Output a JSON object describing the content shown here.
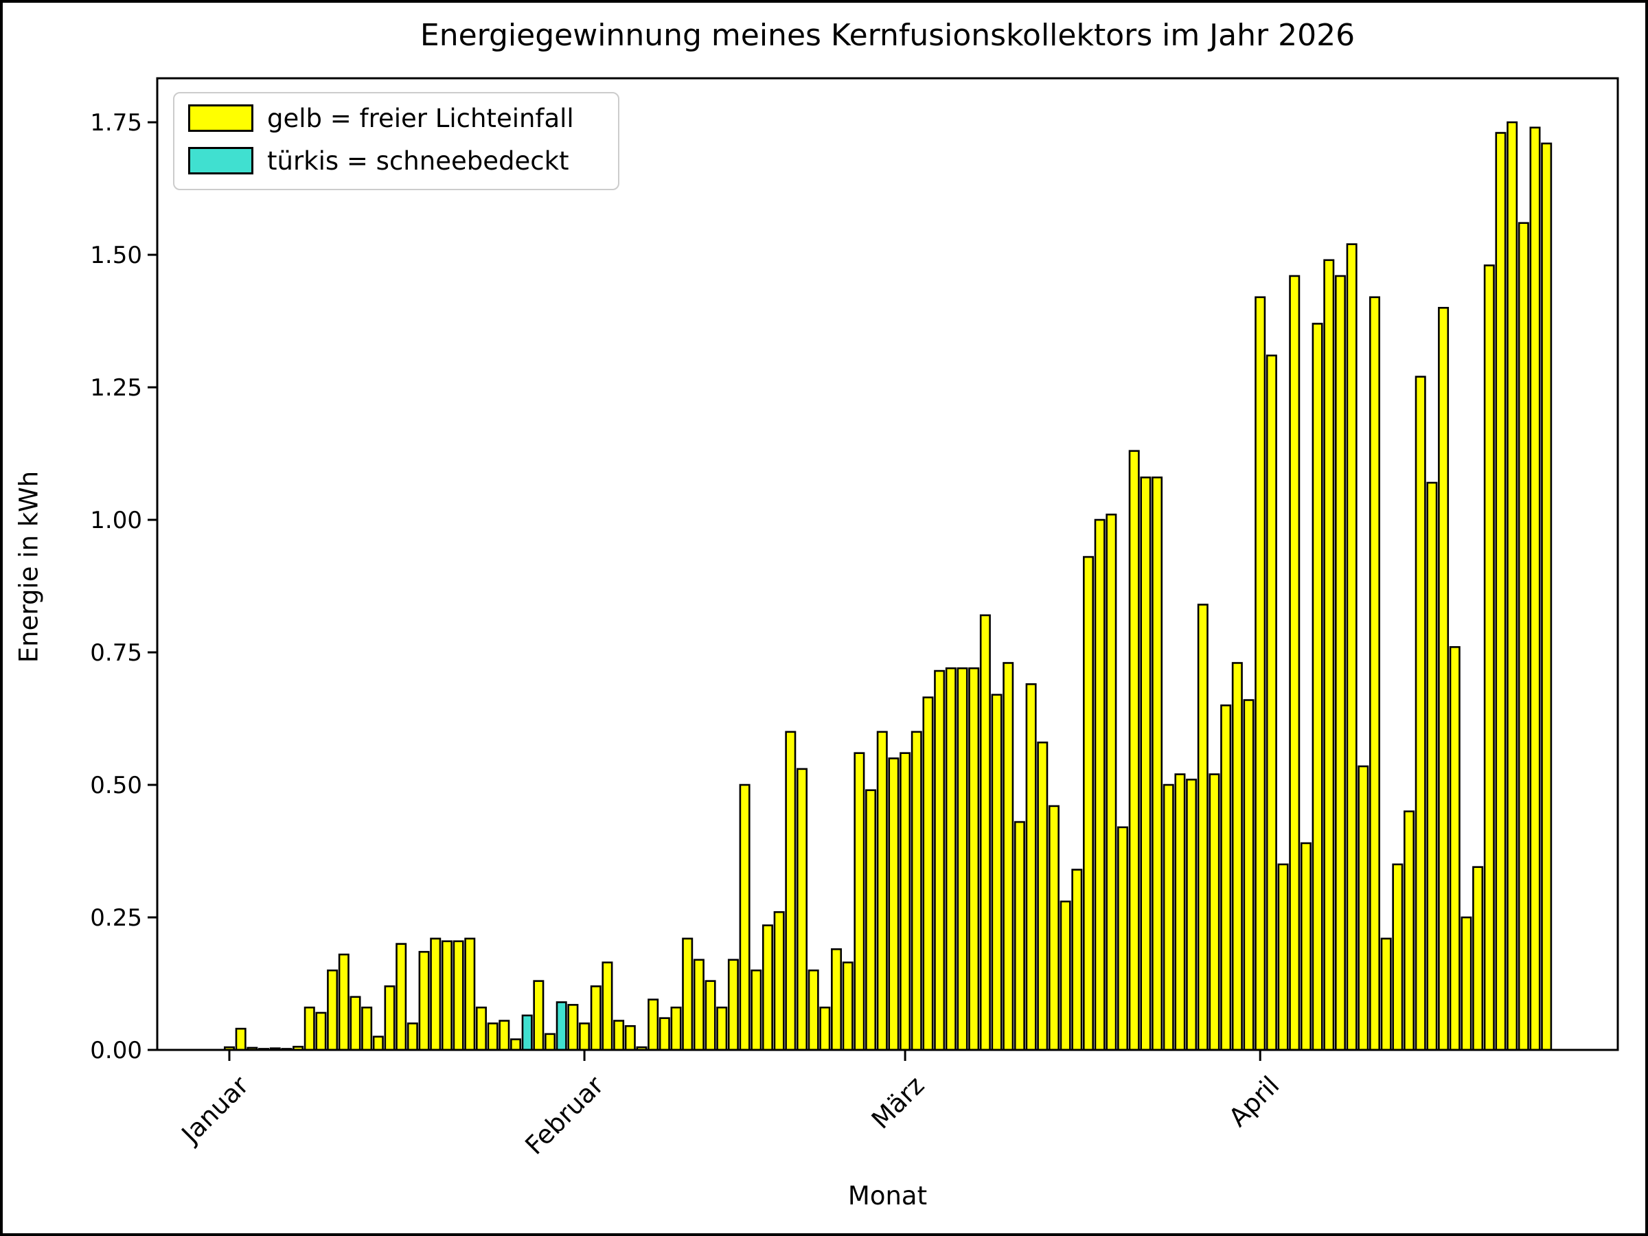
{
  "chart_data": {
    "type": "bar",
    "title": "Energiegewinnung meines Kernfusionskollektors im Jahr 2026",
    "xlabel": "Monat",
    "ylabel": "Energie in kWh",
    "ylim": [
      0,
      1.833
    ],
    "grid": false,
    "legend_position": "upper left",
    "legend": [
      {
        "label": "gelb = freier Lichteinfall",
        "color": "#ffff00"
      },
      {
        "label": "türkis = schneebedeckt",
        "color": "#40e0d0"
      }
    ],
    "colors": {
      "free_light": "#ffff00",
      "snow_covered": "#40e0d0",
      "bar_edge": "#000000",
      "axis": "#000000"
    },
    "yticks": [
      {
        "value": 0.0,
        "label": "0.00"
      },
      {
        "value": 0.25,
        "label": "0.25"
      },
      {
        "value": 0.5,
        "label": "0.50"
      },
      {
        "value": 0.75,
        "label": "0.75"
      },
      {
        "value": 1.0,
        "label": "1.00"
      },
      {
        "value": 1.25,
        "label": "1.25"
      },
      {
        "value": 1.5,
        "label": "1.50"
      },
      {
        "value": 1.75,
        "label": "1.75"
      }
    ],
    "xticks": [
      {
        "day_index": 0,
        "label": "Januar"
      },
      {
        "day_index": 31,
        "label": "Februar"
      },
      {
        "day_index": 59,
        "label": "März"
      },
      {
        "day_index": 90,
        "label": "April"
      }
    ],
    "snow_day_indices": [
      26,
      29
    ],
    "values": [
      0.005,
      0.04,
      0.004,
      0.002,
      0.003,
      0.002,
      0.006,
      0.08,
      0.07,
      0.15,
      0.18,
      0.1,
      0.08,
      0.025,
      0.12,
      0.2,
      0.05,
      0.185,
      0.21,
      0.205,
      0.205,
      0.21,
      0.08,
      0.05,
      0.055,
      0.02,
      0.065,
      0.13,
      0.03,
      0.09,
      0.085,
      0.05,
      0.12,
      0.165,
      0.055,
      0.045,
      0.005,
      0.095,
      0.06,
      0.08,
      0.21,
      0.17,
      0.13,
      0.08,
      0.17,
      0.5,
      0.15,
      0.235,
      0.26,
      0.6,
      0.53,
      0.15,
      0.08,
      0.19,
      0.165,
      0.56,
      0.49,
      0.6,
      0.55,
      0.56,
      0.6,
      0.665,
      0.715,
      0.72,
      0.72,
      0.72,
      0.82,
      0.67,
      0.73,
      0.43,
      0.69,
      0.58,
      0.46,
      0.28,
      0.34,
      0.93,
      1.0,
      1.01,
      0.42,
      1.13,
      1.08,
      1.08,
      0.5,
      0.52,
      0.51,
      0.84,
      0.52,
      0.65,
      0.73,
      0.66,
      1.42,
      1.31,
      0.35,
      1.46,
      0.39,
      1.37,
      1.49,
      1.46,
      1.52,
      0.535,
      1.42,
      0.21,
      0.35,
      0.45,
      1.27,
      1.07,
      1.4,
      0.76,
      0.25,
      0.345,
      1.48,
      1.73,
      1.75,
      1.56,
      1.74,
      1.71
    ]
  }
}
